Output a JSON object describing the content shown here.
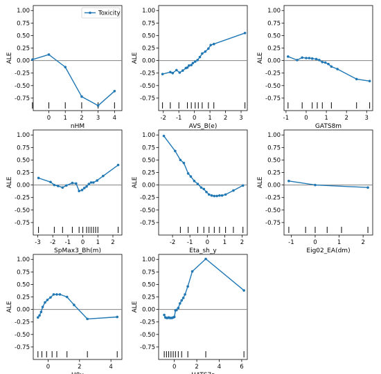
{
  "style": {
    "line_color": "#1f77b4",
    "zero_line_color": "#808080",
    "rug_color": "#000000"
  },
  "legend": {
    "label": "Toxicity",
    "panel": 0,
    "placement": "top-right"
  },
  "chart_data": [
    {
      "type": "line",
      "xlabel": "nHM",
      "ylabel": "ALE",
      "xlim": [
        -0.95,
        4.45
      ],
      "ylim": [
        -1.0,
        1.1
      ],
      "xticks": [
        "0",
        "1",
        "2",
        "3",
        "4"
      ],
      "yticks": [
        "1.00",
        "0.75",
        "0.50",
        "0.25",
        "0.00",
        "-0.25",
        "-0.50",
        "-0.75"
      ],
      "series": [
        {
          "name": "Toxicity",
          "x": [
            -1,
            0,
            1,
            2,
            3,
            4
          ],
          "y": [
            0.02,
            0.12,
            -0.13,
            -0.72,
            -0.9,
            -0.61
          ]
        }
      ],
      "rug": [
        -1,
        0,
        1,
        2,
        3,
        4
      ]
    },
    {
      "type": "line",
      "xlabel": "AVS_B(e)",
      "ylabel": "ALE",
      "xlim": [
        -2.3,
        3.4
      ],
      "ylim": [
        -1.0,
        1.1
      ],
      "xticks": [
        "-2",
        "-1",
        "0",
        "1",
        "2",
        "3"
      ],
      "yticks": [
        "1.00",
        "0.75",
        "0.50",
        "0.25",
        "0.00",
        "-0.25",
        "-0.50",
        "-0.75"
      ],
      "series": [
        {
          "name": "Toxicity",
          "x": [
            -2.05,
            -1.55,
            -1.4,
            -1.15,
            -0.95,
            -0.75,
            -0.55,
            -0.45,
            -0.35,
            -0.2,
            -0.1,
            0.05,
            0.2,
            0.35,
            0.5,
            0.7,
            0.9,
            1.05,
            1.25,
            3.25
          ],
          "y": [
            -0.27,
            -0.23,
            -0.25,
            -0.19,
            -0.24,
            -0.2,
            -0.15,
            -0.14,
            -0.1,
            -0.09,
            -0.05,
            -0.02,
            0.01,
            0.07,
            0.14,
            0.18,
            0.24,
            0.31,
            0.33,
            0.55
          ]
        }
      ],
      "rug": [
        -2.05,
        -1.55,
        -1.0,
        -0.45,
        -0.2,
        0.05,
        0.25,
        0.5,
        0.9,
        1.25,
        3.25
      ]
    },
    {
      "type": "line",
      "xlabel": "GATS8m",
      "ylabel": "ALE",
      "xlim": [
        -1.1,
        3.3
      ],
      "ylim": [
        -1.0,
        1.1
      ],
      "xticks": [
        "-1",
        "0",
        "1",
        "2",
        "3"
      ],
      "yticks": [
        "1.00",
        "0.75",
        "0.50",
        "0.25",
        "0.00",
        "-0.25",
        "-0.50",
        "-0.75"
      ],
      "series": [
        {
          "name": "Toxicity",
          "x": [
            -0.9,
            -0.45,
            -0.2,
            0.0,
            0.15,
            0.3,
            0.5,
            0.65,
            0.8,
            0.95,
            1.1,
            1.25,
            1.55,
            2.5,
            3.15
          ],
          "y": [
            0.08,
            0.01,
            0.06,
            0.05,
            0.05,
            0.04,
            0.03,
            0.01,
            -0.03,
            -0.04,
            -0.07,
            -0.12,
            -0.17,
            -0.37,
            -0.41
          ]
        }
      ],
      "rug": [
        -0.9,
        -0.2,
        0.3,
        0.55,
        0.8,
        1.25,
        2.5,
        3.15
      ]
    },
    {
      "type": "line",
      "xlabel": "SpMax3_Bh(m)",
      "ylabel": "ALE",
      "xlim": [
        -3.3,
        2.6
      ],
      "ylim": [
        -1.0,
        1.1
      ],
      "xticks": [
        "-3",
        "-2",
        "-1",
        "0",
        "1",
        "2"
      ],
      "yticks": [
        "1.00",
        "0.75",
        "0.50",
        "0.25",
        "0.00",
        "-0.25",
        "-0.50",
        "-0.75"
      ],
      "series": [
        {
          "name": "Toxicity",
          "x": [
            -2.95,
            -2.15,
            -1.9,
            -1.65,
            -1.35,
            -1.1,
            -0.7,
            -0.45,
            -0.25,
            -0.05,
            0.1,
            0.25,
            0.4,
            0.55,
            0.7,
            0.95,
            1.35,
            2.35
          ],
          "y": [
            0.14,
            0.06,
            0.0,
            -0.02,
            -0.05,
            -0.01,
            0.04,
            0.03,
            -0.12,
            -0.1,
            -0.06,
            -0.03,
            0.02,
            0.05,
            0.05,
            0.09,
            0.18,
            0.4
          ]
        }
      ],
      "rug": [
        -2.95,
        -1.9,
        -1.35,
        -0.7,
        -0.25,
        0.0,
        0.25,
        0.4,
        0.55,
        0.7,
        0.85,
        1.0,
        2.35
      ]
    },
    {
      "type": "line",
      "xlabel": "Eta_sh_y",
      "ylabel": "ALE",
      "xlim": [
        -2.8,
        2.3
      ],
      "ylim": [
        -1.0,
        1.1
      ],
      "xticks": [
        "-2",
        "-1",
        "0",
        "1",
        "2"
      ],
      "yticks": [
        "1.00",
        "0.75",
        "0.50",
        "0.25",
        "0.00",
        "-0.25",
        "-0.50",
        "-0.75"
      ],
      "series": [
        {
          "name": "Toxicity",
          "x": [
            -2.5,
            -1.85,
            -1.55,
            -1.35,
            -1.1,
            -0.95,
            -0.75,
            -0.55,
            -0.35,
            -0.2,
            -0.05,
            0.1,
            0.25,
            0.4,
            0.55,
            0.7,
            0.85,
            1.05,
            1.5,
            2.05
          ],
          "y": [
            0.98,
            0.68,
            0.5,
            0.44,
            0.23,
            0.17,
            0.08,
            0.02,
            -0.05,
            -0.08,
            -0.14,
            -0.19,
            -0.21,
            -0.22,
            -0.22,
            -0.21,
            -0.21,
            -0.19,
            -0.11,
            -0.01
          ]
        }
      ],
      "rug": [
        -1.55,
        -1.1,
        -0.55,
        -0.2,
        0.1,
        0.4,
        0.7,
        1.05,
        1.5,
        2.05
      ]
    },
    {
      "type": "line",
      "xlabel": "Eig02_EA(dm)",
      "ylabel": "ALE",
      "xlim": [
        -1.3,
        2.4
      ],
      "ylim": [
        -1.0,
        1.1
      ],
      "xticks": [
        "-1",
        "0",
        "1",
        "2"
      ],
      "yticks": [
        "1.00",
        "0.75",
        "0.50",
        "0.25",
        "0.00",
        "-0.25",
        "-0.50",
        "-0.75"
      ],
      "series": [
        {
          "name": "Toxicity",
          "x": [
            -1.1,
            0.0,
            2.2
          ],
          "y": [
            0.08,
            0.0,
            -0.05
          ]
        }
      ],
      "rug": [
        -1.1,
        -0.4,
        0.0,
        0.5,
        1.1,
        2.2
      ]
    },
    {
      "type": "line",
      "xlabel": "H8u",
      "ylabel": "ALE",
      "xlim": [
        -0.95,
        4.7
      ],
      "ylim": [
        -1.0,
        1.1
      ],
      "xticks": [
        "0",
        "2",
        "4"
      ],
      "yticks": [
        "1.00",
        "0.75",
        "0.50",
        "0.25",
        "0.00",
        "-0.25",
        "-0.50",
        "-0.75"
      ],
      "series": [
        {
          "name": "Toxicity",
          "x": [
            -0.65,
            -0.55,
            -0.45,
            -0.35,
            -0.2,
            -0.05,
            0.15,
            0.35,
            0.55,
            0.75,
            1.2,
            1.65,
            2.5,
            4.4
          ],
          "y": [
            -0.16,
            -0.12,
            -0.05,
            0.05,
            0.14,
            0.19,
            0.24,
            0.3,
            0.3,
            0.3,
            0.25,
            0.09,
            -0.19,
            -0.15
          ]
        }
      ],
      "rug": [
        -0.65,
        -0.4,
        -0.1,
        0.25,
        0.55,
        1.2,
        2.5,
        4.4
      ]
    },
    {
      "type": "line",
      "xlabel": "HATS7s",
      "ylabel": "ALE",
      "xlim": [
        -1.4,
        6.5
      ],
      "ylim": [
        -1.0,
        1.1
      ],
      "xticks": [
        "0",
        "2",
        "4",
        "6"
      ],
      "yticks": [
        "1.00",
        "0.75",
        "0.50",
        "0.25",
        "0.00",
        "-0.25",
        "-0.50",
        "-0.75"
      ],
      "series": [
        {
          "name": "Toxicity",
          "x": [
            -0.9,
            -0.8,
            -0.7,
            -0.6,
            -0.5,
            -0.4,
            -0.3,
            -0.2,
            -0.1,
            0.0,
            0.1,
            0.2,
            0.35,
            0.5,
            0.65,
            0.8,
            0.95,
            1.2,
            1.6,
            2.8,
            6.2
          ],
          "y": [
            -0.11,
            -0.16,
            -0.17,
            -0.17,
            -0.16,
            -0.17,
            -0.17,
            -0.17,
            -0.16,
            -0.15,
            -0.02,
            -0.01,
            0.03,
            0.12,
            0.18,
            0.23,
            0.3,
            0.46,
            0.76,
            1.01,
            0.38
          ]
        }
      ],
      "rug": [
        -0.9,
        -0.7,
        -0.5,
        -0.3,
        -0.1,
        0.1,
        0.35,
        0.65,
        1.2,
        2.8,
        6.2
      ]
    }
  ]
}
